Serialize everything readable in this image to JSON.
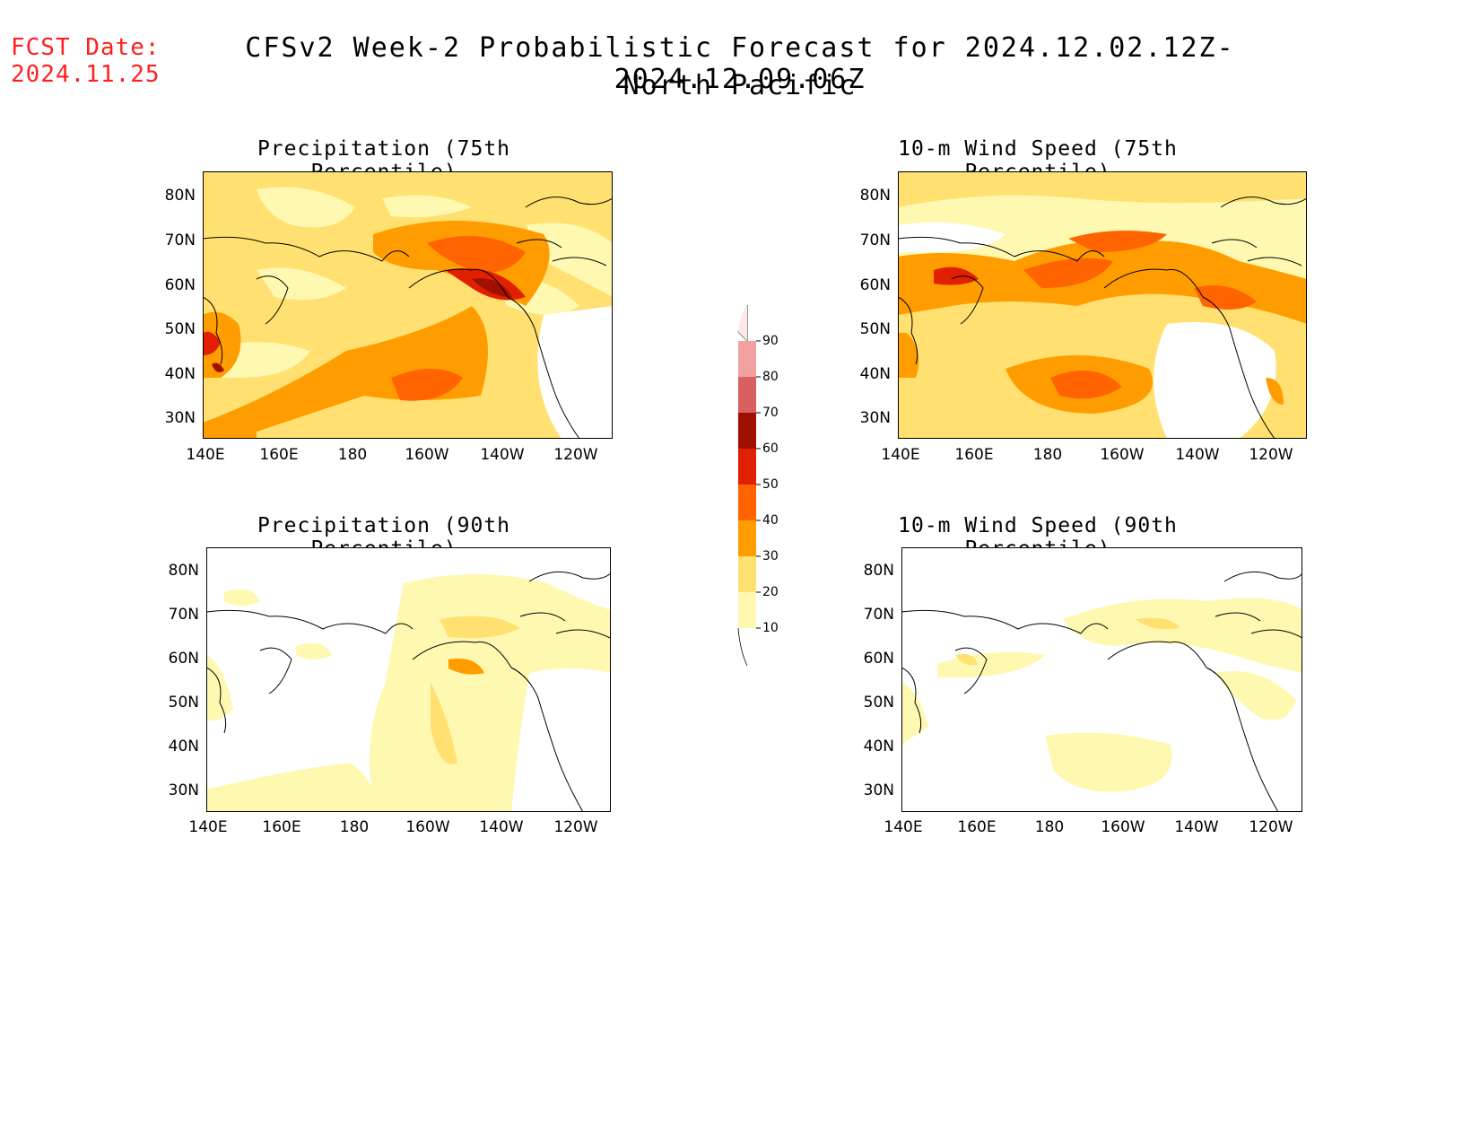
{
  "header": {
    "fcst_label": "FCST Date:",
    "fcst_date": "2024.11.25",
    "title": "CFSv2 Week-2 Probabilistic Forecast for 2024.12.02.12Z-2024.12.09.06Z",
    "subtitle": "North Pacific"
  },
  "panels": [
    {
      "title": "Precipitation (75th Percentile)"
    },
    {
      "title": "10-m Wind Speed (75th Percentile)"
    },
    {
      "title": "Precipitation (90th Percentile)"
    },
    {
      "title": "10-m Wind Speed (90th Percentile)"
    }
  ],
  "axes": {
    "lat_labels": [
      "80N",
      "70N",
      "60N",
      "50N",
      "40N",
      "30N"
    ],
    "lon_labels": [
      "140E",
      "160E",
      "180",
      "160W",
      "140W",
      "120W"
    ]
  },
  "colorbar": {
    "labels": [
      "90",
      "80",
      "70",
      "60",
      "50",
      "40",
      "30",
      "20",
      "10"
    ],
    "colors": [
      "#ffe0e0",
      "#f2a0a0",
      "#d86060",
      "#a01000",
      "#e02000",
      "#ff6400",
      "#ff9c00",
      "#ffe070",
      "#fff8b0"
    ]
  }
}
